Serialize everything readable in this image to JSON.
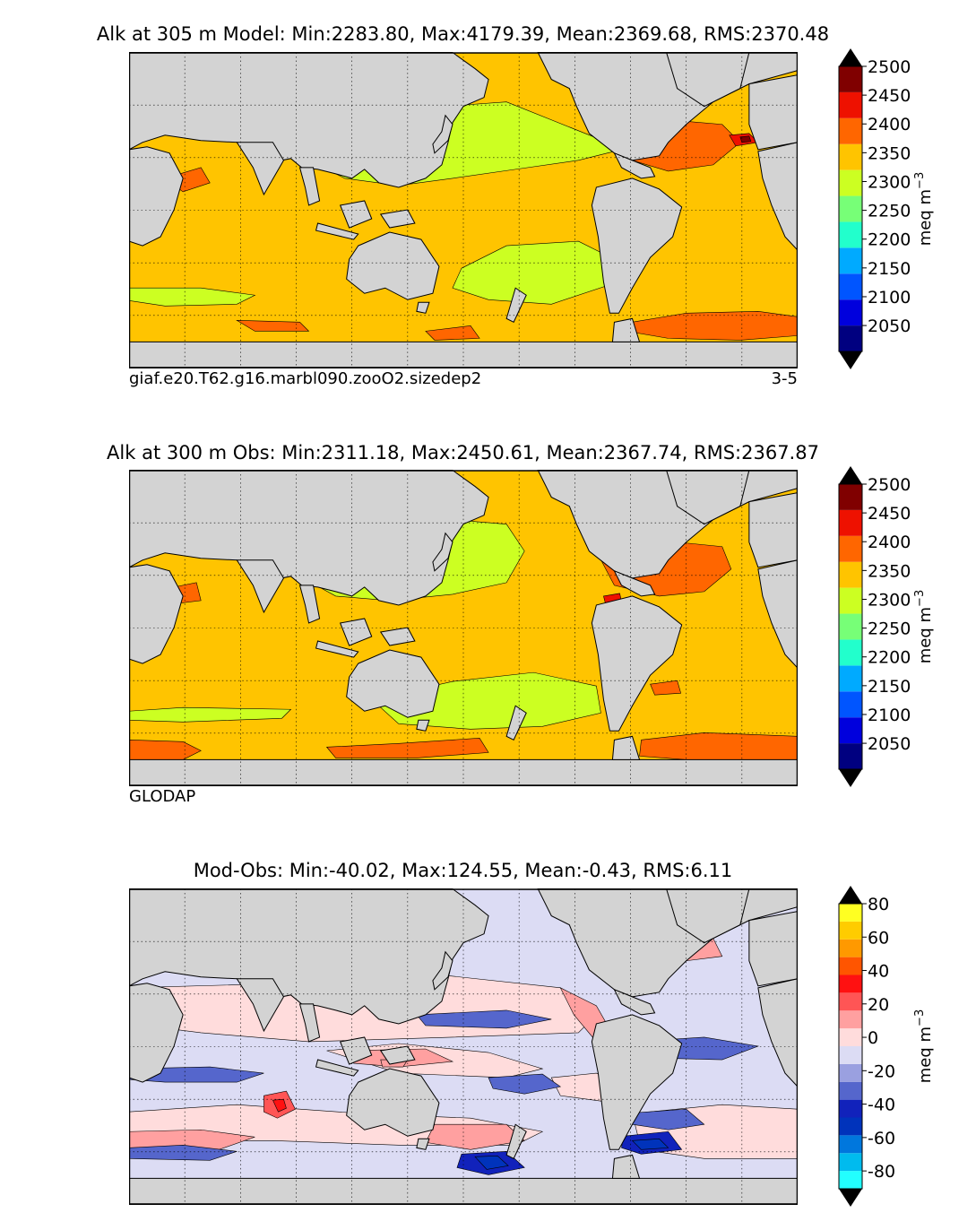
{
  "chart_data": [
    {
      "type": "heatmap",
      "title": "Alk at 305 m Model: Min:2283.80, Max:4179.39, Mean:2369.68, RMS:2370.48",
      "footer_left": "giaf.e20.T62.g16.marbl090.zooO2.sizedep2",
      "footer_right": "3-5",
      "colorbar": {
        "label": "meq m",
        "label_sup": "−3",
        "ticks": [
          "2050",
          "2100",
          "2150",
          "2200",
          "2250",
          "2300",
          "2350",
          "2400",
          "2450",
          "2500"
        ],
        "colors": [
          "#000080",
          "#0000dd",
          "#0055ff",
          "#00aaff",
          "#22ffcc",
          "#77ff77",
          "#ccff22",
          "#ffc400",
          "#ff6600",
          "#ee1100",
          "#800000"
        ],
        "extend": "both"
      }
    },
    {
      "type": "heatmap",
      "title": "Alk at 300 m Obs: Min:2311.18, Max:2450.61, Mean:2367.74, RMS:2367.87",
      "footer_left": "GLODAP",
      "footer_right": "",
      "colorbar": {
        "label": "meq m",
        "label_sup": "−3",
        "ticks": [
          "2050",
          "2100",
          "2150",
          "2200",
          "2250",
          "2300",
          "2350",
          "2400",
          "2450",
          "2500"
        ],
        "colors": [
          "#000080",
          "#0000dd",
          "#0055ff",
          "#00aaff",
          "#22ffcc",
          "#77ff77",
          "#ccff22",
          "#ffc400",
          "#ff6600",
          "#ee1100",
          "#800000"
        ],
        "extend": "both"
      }
    },
    {
      "type": "heatmap",
      "title": "Mod-Obs: Min:-40.02, Max:124.55, Mean:-0.43, RMS:6.11",
      "footer_left": "",
      "footer_right": "",
      "colorbar": {
        "label": "meq m",
        "label_sup": "−3",
        "ticks": [
          "-80",
          "-60",
          "-40",
          "-20",
          "0",
          "20",
          "40",
          "60",
          "80"
        ],
        "colors": [
          "#22ffff",
          "#00bbee",
          "#0077dd",
          "#0033bb",
          "#1122bb",
          "#5566cc",
          "#9aa0e0",
          "#dcdcf4",
          "#ffdcdc",
          "#ffa0a0",
          "#ff5555",
          "#ff1111",
          "#ff5500",
          "#ff9900",
          "#ffcc00",
          "#ffff22"
        ],
        "extend": "both"
      }
    }
  ]
}
